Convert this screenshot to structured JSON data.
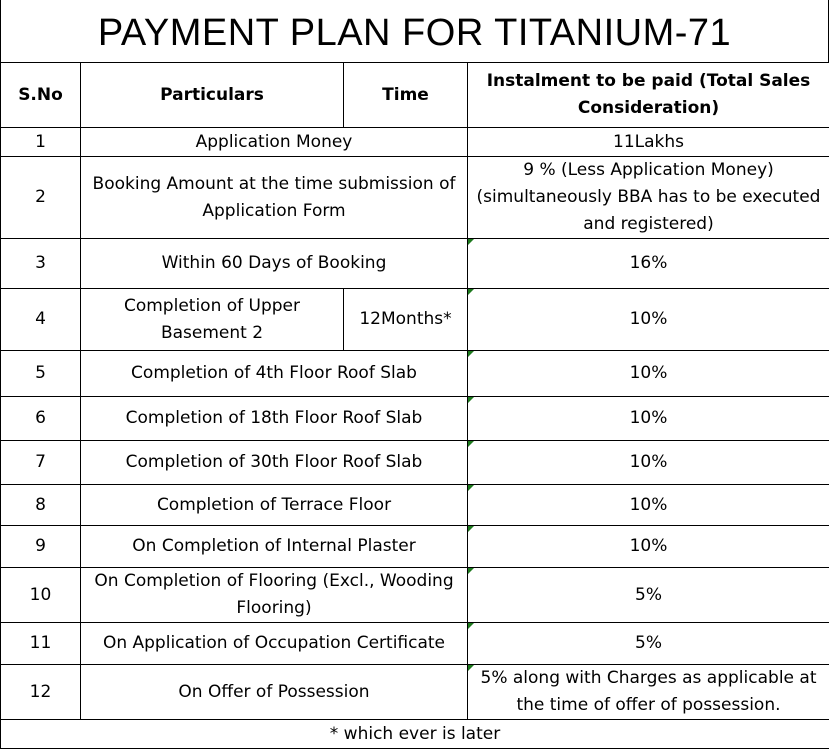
{
  "title": "PAYMENT PLAN FOR TITANIUM-71",
  "headers": {
    "sno": "S.No",
    "particulars": "Particulars",
    "time": "Time",
    "instalment": "Instalment to be paid (Total Sales Consideration)"
  },
  "rows": [
    {
      "sno": "1",
      "particulars": "Application Money",
      "time": "",
      "instalment": "11Lakhs"
    },
    {
      "sno": "2",
      "particulars": "Booking Amount at the time submission of Application Form",
      "time": "",
      "instalment": "9 % (Less Application Money)(simultaneously BBA has to be executed and registered)"
    },
    {
      "sno": "3",
      "particulars": "Within 60 Days of Booking",
      "time": "",
      "instalment": "16%"
    },
    {
      "sno": "4",
      "particulars": "Completion of Upper Basement 2",
      "time": "12Months*",
      "instalment": "10%"
    },
    {
      "sno": "5",
      "particulars": "Completion of 4th Floor Roof Slab",
      "time": "",
      "instalment": "10%"
    },
    {
      "sno": "6",
      "particulars": "Completion of 18th Floor Roof Slab",
      "time": "",
      "instalment": "10%"
    },
    {
      "sno": "7",
      "particulars": "Completion of 30th Floor Roof Slab",
      "time": "",
      "instalment": "10%"
    },
    {
      "sno": "8",
      "particulars": "Completion of Terrace Floor",
      "time": "",
      "instalment": "10%"
    },
    {
      "sno": "9",
      "particulars": "On Completion of Internal Plaster",
      "time": "",
      "instalment": "10%"
    },
    {
      "sno": "10",
      "particulars": "On Completion of Flooring (Excl., Wooding Flooring)",
      "time": "",
      "instalment": "5%"
    },
    {
      "sno": "11",
      "particulars": "On Application of Occupation Certificate",
      "time": "",
      "instalment": "5%"
    },
    {
      "sno": "12",
      "particulars": "On Offer of Possession",
      "time": "",
      "instalment": "5% along with Charges as applicable at the time of offer of possession."
    }
  ],
  "footnote": "* which ever is later",
  "colors": {
    "comment_marker": "#1e7a1e"
  }
}
